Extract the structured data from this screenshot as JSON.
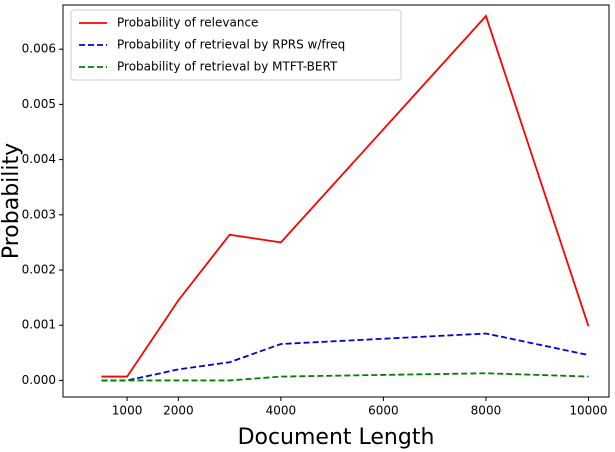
{
  "chart_data": {
    "type": "line",
    "x_label": "Document Length",
    "y_label": "Probability",
    "x": [
      500,
      1000,
      2000,
      3000,
      4000,
      8000,
      10000
    ],
    "series": [
      {
        "name": "Probability of relevance",
        "color": "#ff0000",
        "dash": false,
        "values": [
          7e-05,
          7e-05,
          0.00145,
          0.00264,
          0.0025,
          0.0066,
          0.00098
        ]
      },
      {
        "name": "Probability of retrieval by RPRS w/freq",
        "color": "#0000dd",
        "dash": true,
        "values": [
          0.0,
          0.0,
          0.0002,
          0.00033,
          0.00066,
          0.00085,
          0.00046
        ]
      },
      {
        "name": "Probability of retrieval by MTFT-BERT",
        "color": "#008000",
        "dash": true,
        "values": [
          0.0,
          0.0,
          0.0,
          0.0,
          7e-05,
          0.00013,
          7e-05
        ]
      }
    ],
    "xlim": [
      -250,
      10400
    ],
    "ylim": [
      -0.0003,
      0.0068
    ],
    "xticks": [
      1000,
      2000,
      4000,
      6000,
      8000,
      10000
    ],
    "yticks": [
      {
        "value": 0,
        "label": "0.000"
      },
      {
        "value": 0.001,
        "label": "0.001"
      },
      {
        "value": 0.002,
        "label": "0.002"
      },
      {
        "value": 0.003,
        "label": "0.003"
      },
      {
        "value": 0.004,
        "label": "0.004"
      },
      {
        "value": 0.005,
        "label": "0.005"
      },
      {
        "value": 0.006,
        "label": "0.006"
      }
    ],
    "legend": "upper left"
  }
}
